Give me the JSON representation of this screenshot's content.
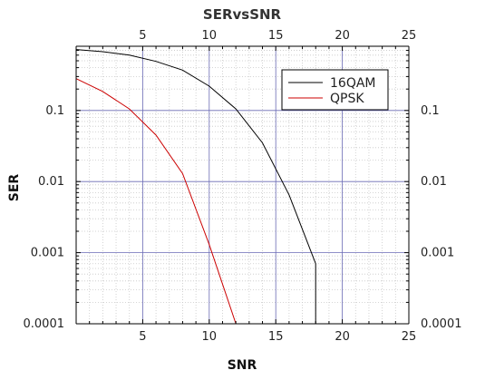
{
  "chart_data": {
    "type": "line",
    "title": "SERvsSNR",
    "xlabel": "SNR",
    "ylabel": "SER",
    "xlim": [
      0,
      25
    ],
    "ylim": [
      0.0001,
      0.8
    ],
    "yscale": "log",
    "grid": true,
    "legend_position": "top-right",
    "x_ticks": [
      5,
      10,
      15,
      20,
      25
    ],
    "x_tick_labels": [
      "5",
      "10",
      "15",
      "20",
      "25"
    ],
    "y_ticks": [
      0.0001,
      0.001,
      0.01,
      0.1
    ],
    "y_tick_labels": [
      "0.0001",
      "0.001",
      "0.01",
      "0.1"
    ],
    "series": [
      {
        "name": "16QAM",
        "color": "#000000",
        "x": [
          0,
          2,
          4,
          6,
          8,
          10,
          12,
          14,
          16,
          18,
          18
        ],
        "values": [
          0.72,
          0.67,
          0.6,
          0.49,
          0.37,
          0.22,
          0.105,
          0.035,
          0.0065,
          0.0007,
          0.0001
        ]
      },
      {
        "name": "QPSK",
        "color": "#cc0000",
        "x": [
          0,
          2,
          4,
          6,
          8,
          10,
          12
        ],
        "values": [
          0.28,
          0.185,
          0.105,
          0.045,
          0.013,
          0.0013,
          0.0001
        ]
      }
    ]
  }
}
